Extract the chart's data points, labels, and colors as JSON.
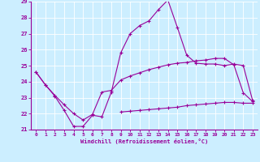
{
  "xlabel": "Windchill (Refroidissement éolien,°C)",
  "background_color": "#cceeff",
  "grid_color": "#ffffff",
  "line_color": "#990099",
  "x": [
    0,
    1,
    2,
    3,
    4,
    5,
    6,
    7,
    8,
    9,
    10,
    11,
    12,
    13,
    14,
    15,
    16,
    17,
    18,
    19,
    20,
    21,
    22,
    23
  ],
  "line_top": [
    24.6,
    23.8,
    23.1,
    22.2,
    21.2,
    21.2,
    21.9,
    21.8,
    23.35,
    25.8,
    27.0,
    27.5,
    27.8,
    28.5,
    29.1,
    27.4,
    25.65,
    25.15,
    25.1,
    25.1,
    25.0,
    25.1,
    25.0,
    22.8
  ],
  "line_mid": [
    24.6,
    23.8,
    23.15,
    22.55,
    22.0,
    21.6,
    21.95,
    23.35,
    23.45,
    24.1,
    24.35,
    24.55,
    24.75,
    24.9,
    25.05,
    25.15,
    25.2,
    25.3,
    25.35,
    25.45,
    25.45,
    25.05,
    23.3,
    22.75
  ],
  "line_bot": [
    null,
    null,
    null,
    null,
    null,
    null,
    null,
    null,
    null,
    22.1,
    22.15,
    22.2,
    22.25,
    22.3,
    22.35,
    22.4,
    22.5,
    22.55,
    22.6,
    22.65,
    22.7,
    22.7,
    22.65,
    22.65
  ],
  "ylim": [
    21,
    29
  ],
  "xlim": [
    -0.5,
    23.5
  ],
  "yticks": [
    21,
    22,
    23,
    24,
    25,
    26,
    27,
    28,
    29
  ],
  "xticks": [
    0,
    1,
    2,
    3,
    4,
    5,
    6,
    7,
    8,
    9,
    10,
    11,
    12,
    13,
    14,
    15,
    16,
    17,
    18,
    19,
    20,
    21,
    22,
    23
  ]
}
